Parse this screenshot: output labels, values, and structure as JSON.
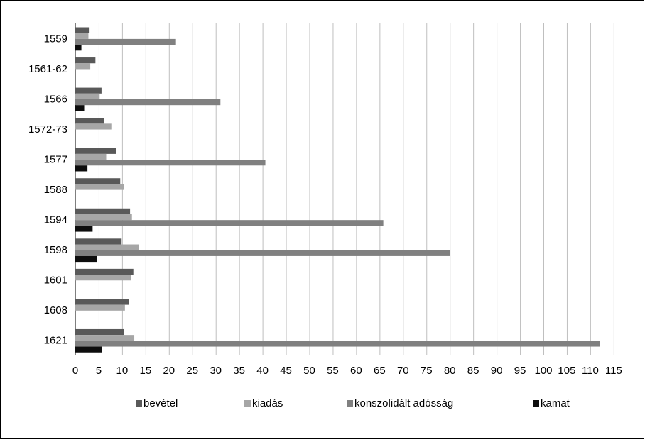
{
  "chart_data": {
    "type": "bar",
    "orientation": "horizontal",
    "categories": [
      "1559",
      "1561-62",
      "1566",
      "1572-73",
      "1577",
      "1588",
      "1594",
      "1598",
      "1601",
      "1608",
      "1621"
    ],
    "series": [
      {
        "name": "bevétel",
        "color": "#595959",
        "values": [
          2.9,
          4.3,
          5.6,
          6.2,
          8.8,
          9.6,
          11.7,
          9.9,
          12.4,
          11.5,
          10.4
        ]
      },
      {
        "name": "kiadás",
        "color": "#a6a6a6",
        "values": [
          2.8,
          3.2,
          5.2,
          7.7,
          6.6,
          10.4,
          12.1,
          13.6,
          11.9,
          10.6,
          12.6
        ]
      },
      {
        "name": "konszolidált adósság",
        "color": "#808080",
        "values": [
          21.5,
          null,
          31.0,
          null,
          40.6,
          null,
          65.8,
          80.1,
          null,
          null,
          112.1
        ]
      },
      {
        "name": "kamat",
        "color": "#0d0d0d",
        "values": [
          1.3,
          null,
          1.9,
          null,
          2.6,
          null,
          3.7,
          4.6,
          null,
          null,
          5.7
        ]
      }
    ],
    "xlim": [
      0,
      115
    ],
    "xticks": [
      0,
      5,
      10,
      15,
      20,
      25,
      30,
      35,
      40,
      45,
      50,
      55,
      60,
      65,
      70,
      75,
      80,
      85,
      90,
      95,
      100,
      105,
      110,
      115
    ],
    "grid": true,
    "legend_position": "bottom"
  }
}
